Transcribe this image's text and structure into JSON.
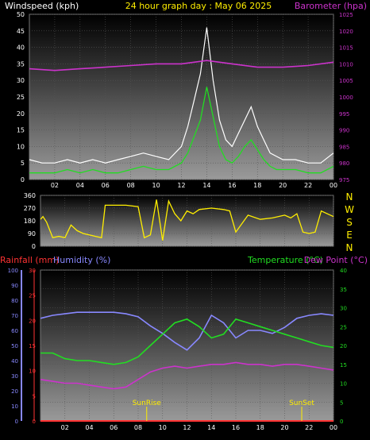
{
  "header": {
    "windspeed_label": "Windspeed (kph)",
    "title": "24 hour graph day : May 06 2025",
    "barometer_label": "Barometer (hpa)"
  },
  "colors": {
    "windspeed": "#ffffff",
    "gust": "#ffffff",
    "wind_avg": "#22dd22",
    "barometer": "#cc33cc",
    "direction": "#ffee00",
    "temperature": "#22dd22",
    "dewpoint": "#cc33cc",
    "humidity": "#8888ff",
    "rainfall": "#ff3333"
  },
  "labels": {
    "rainfall": "Rainfall (mm)",
    "humidity": "Humidity (%)",
    "temperature": "Temperature (°C)",
    "dewpoint": "Dew Point (°C)",
    "sunrise": "SunRise",
    "sunset": "SunSet",
    "compass": [
      "N",
      "W",
      "S",
      "E",
      "N"
    ]
  },
  "chart_data": [
    {
      "type": "line",
      "name": "wind-barometer",
      "x_ticks": [
        "02",
        "04",
        "06",
        "08",
        "10",
        "12",
        "14",
        "16",
        "18",
        "20",
        "22",
        "00"
      ],
      "y_left_ticks": [
        "0",
        "5",
        "10",
        "15",
        "20",
        "25",
        "30",
        "35",
        "40",
        "45",
        "50"
      ],
      "y_left_range": [
        0,
        50
      ],
      "y_right_ticks": [
        "975",
        "980",
        "985",
        "990",
        "995",
        "1000",
        "1005",
        "1010",
        "1015",
        "1020",
        "1025"
      ],
      "y_right_range": [
        975,
        1025
      ],
      "hours": [
        0,
        1,
        2,
        3,
        4,
        5,
        6,
        7,
        8,
        9,
        10,
        11,
        12,
        12.5,
        13,
        13.5,
        14,
        14.5,
        15,
        15.5,
        16,
        16.5,
        17,
        17.5,
        18,
        18.5,
        19,
        19.5,
        20,
        21,
        22,
        23,
        24
      ],
      "gust": [
        6,
        5,
        5,
        6,
        5,
        6,
        5,
        6,
        7,
        8,
        7,
        6,
        10,
        16,
        24,
        32,
        46,
        30,
        18,
        12,
        10,
        14,
        18,
        22,
        16,
        12,
        8,
        7,
        6,
        6,
        5,
        5,
        8
      ],
      "avg_wind": [
        2,
        2,
        2,
        3,
        2,
        3,
        2,
        2,
        3,
        4,
        3,
        3,
        5,
        8,
        13,
        18,
        28,
        19,
        10,
        6,
        5,
        7,
        10,
        12,
        9,
        6,
        4,
        3,
        3,
        3,
        2,
        2,
        4
      ],
      "barometer_hours": [
        0,
        2,
        4,
        6,
        8,
        10,
        12,
        13,
        14,
        15,
        16,
        18,
        20,
        22,
        24
      ],
      "barometer": [
        1008.5,
        1008,
        1008.5,
        1009,
        1009.5,
        1010,
        1010,
        1010.5,
        1011,
        1010.5,
        1010,
        1009,
        1009,
        1009.5,
        1010.5
      ]
    },
    {
      "type": "line",
      "name": "wind-direction",
      "y_ticks": [
        "360",
        "270",
        "180",
        "90",
        "0"
      ],
      "y_range": [
        0,
        360
      ],
      "hours": [
        0,
        0.2,
        0.5,
        1,
        1.5,
        2,
        2.5,
        3,
        3.5,
        4,
        4.5,
        5,
        5.3,
        5.7,
        6,
        7,
        8,
        8.5,
        9,
        9.5,
        10,
        10.5,
        11,
        11.5,
        12,
        12.5,
        13,
        14,
        15,
        15.5,
        16,
        17,
        18,
        19,
        20,
        20.5,
        21,
        21.5,
        22,
        22.5,
        23,
        24
      ],
      "direction": [
        190,
        210,
        170,
        60,
        70,
        60,
        150,
        110,
        90,
        80,
        70,
        60,
        290,
        290,
        290,
        290,
        280,
        60,
        80,
        330,
        40,
        320,
        230,
        180,
        250,
        230,
        260,
        270,
        260,
        250,
        100,
        220,
        190,
        200,
        220,
        200,
        230,
        100,
        90,
        100,
        250,
        210
      ]
    },
    {
      "type": "line",
      "name": "temp-humidity-rain",
      "y_left_ticks": [
        "0",
        "5",
        "10",
        "15",
        "20",
        "25",
        "30"
      ],
      "y_left_range": [
        0,
        30
      ],
      "y_humidity_ticks": [
        "0",
        "10",
        "20",
        "30",
        "40",
        "50",
        "60",
        "70",
        "80",
        "90",
        "100"
      ],
      "y_humidity_range": [
        0,
        100
      ],
      "y_right_ticks": [
        "0",
        "5",
        "10",
        "15",
        "20",
        "25",
        "30",
        "35",
        "40"
      ],
      "y_right_range": [
        0,
        40
      ],
      "hours": [
        0,
        1,
        2,
        3,
        4,
        5,
        6,
        7,
        8,
        9,
        10,
        11,
        12,
        13,
        14,
        15,
        16,
        17,
        18,
        19,
        20,
        21,
        22,
        23,
        24
      ],
      "temperature": [
        18,
        18,
        16.5,
        16,
        16,
        15.5,
        15,
        15.5,
        17,
        20,
        23,
        26,
        27,
        25,
        22,
        23,
        27,
        26,
        25,
        24,
        23,
        22,
        21,
        20,
        19.5
      ],
      "dewpoint": [
        11,
        10.5,
        10,
        10,
        9.5,
        9,
        8.5,
        9,
        11,
        13,
        14,
        14.5,
        14,
        14.5,
        15,
        15,
        15.5,
        15,
        15,
        14.5,
        15,
        15,
        14.5,
        14,
        13.5
      ],
      "humidity": [
        68,
        70,
        71,
        72,
        72,
        72,
        72,
        71,
        69,
        63,
        58,
        52,
        47,
        55,
        70,
        65,
        55,
        60,
        60,
        58,
        62,
        68,
        70,
        71,
        70
      ],
      "rainfall": [
        0,
        0,
        0,
        0,
        0,
        0,
        0,
        0,
        0,
        0,
        0,
        0,
        0,
        0,
        0,
        0,
        0,
        0,
        0,
        0,
        0,
        0,
        0,
        0,
        0
      ],
      "sunrise_hour": 8.7,
      "sunset_hour": 21.4
    }
  ]
}
